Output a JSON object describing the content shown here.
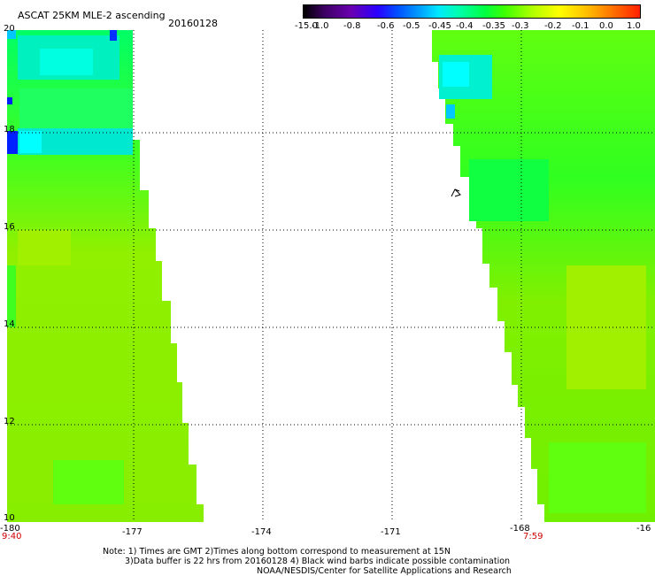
{
  "header": {
    "title": "ASCAT 25KM MLE-2 ascending",
    "date": "20160128"
  },
  "colorbar": {
    "labels": [
      "-15.0",
      "-1.0",
      "-0.8",
      "-0.6",
      "-0.5",
      "-0.45",
      "-0.4",
      "-0.35",
      "-0.3",
      "-0.2",
      "-0.1",
      "0.0",
      "1.0"
    ]
  },
  "axes": {
    "x_labels": [
      "-180",
      "-177",
      "-174",
      "-171",
      "-168",
      "-16"
    ],
    "y_labels": [
      "20",
      "18",
      "16",
      "14",
      "12",
      "10"
    ],
    "time_left": "9:40",
    "time_right": "7:59"
  },
  "map_values": {
    "lon_range": [
      -180,
      -165
    ],
    "lat_range": [
      10,
      20
    ],
    "swath_left_edge_lon": [
      -177.3,
      -175.5
    ],
    "swath_right_edge_lon": [
      -169.4,
      -167.6
    ],
    "value_range_dominant": [
      -0.45,
      -0.2
    ]
  },
  "colors": {
    "gridline": "#000000",
    "time_label": "#cc0000",
    "dominant_fill": "#7df000",
    "low_value": "#00ffe0",
    "very_low_value": "#0020ff"
  },
  "notes": {
    "line1": "Note: 1) Times are GMT 2)Times along bottom correspond to measurement at 15N",
    "line2": "3)Data buffer is 22 hrs from 20160128 4) Black wind barbs indicate possible contamination",
    "line3": "NOAA/NESDIS/Center for Satellite Applications and Research"
  }
}
